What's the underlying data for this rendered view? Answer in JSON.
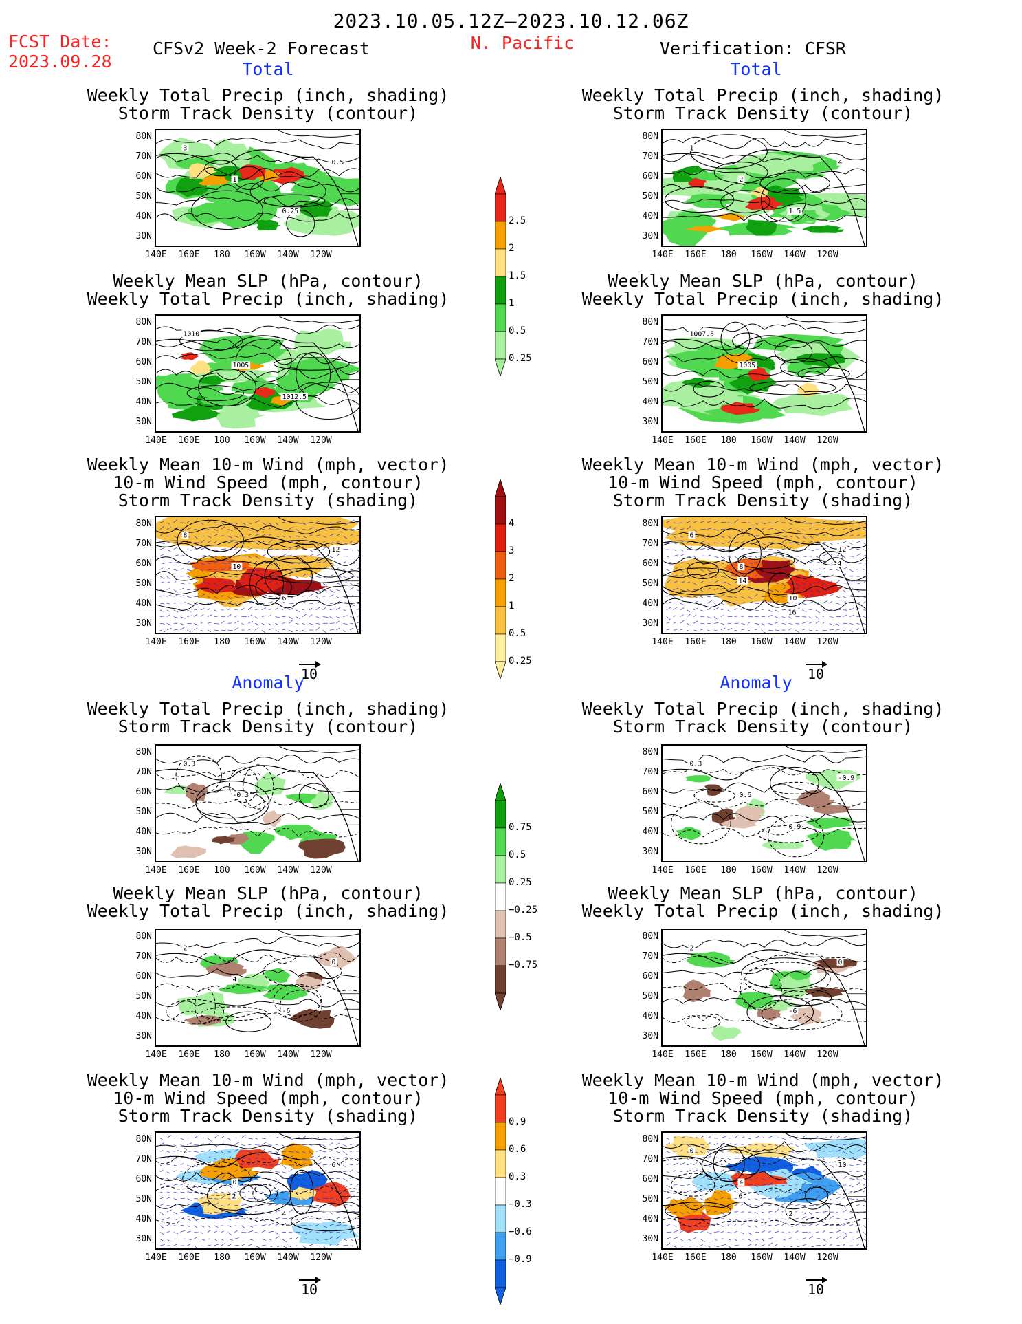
{
  "header": {
    "period": "2023.10.05.12Z–2023.10.12.06Z",
    "fcst_label": "FCST Date:",
    "fcst_date": "2023.09.28",
    "region": "N. Pacific",
    "left_title": "CFSv2 Week-2 Forecast",
    "right_title": "Verification: CFSR"
  },
  "sections": {
    "total": "Total",
    "anomaly": "Anomaly"
  },
  "panel_titles": {
    "precip_storm": "Weekly Total Precip (inch, shading)\nStorm Track Density (contour)",
    "slp_precip": "Weekly Mean SLP (hPa, contour)\nWeekly Total Precip (inch, shading)",
    "wind_storm": "Weekly Mean 10-m Wind (mph, vector)\n10-m Wind Speed (mph, contour)\nStorm Track Density (shading)"
  },
  "axes": {
    "lat_labels": [
      "80N",
      "70N",
      "60N",
      "50N",
      "40N",
      "30N"
    ],
    "lon_labels": [
      "140E",
      "160E",
      "180",
      "160W",
      "140W",
      "120W"
    ]
  },
  "wind_reference": "10",
  "colorbars": {
    "total_precip": {
      "levels": [
        "2.5",
        "2",
        "1.5",
        "1",
        "0.5",
        "0.25"
      ],
      "colors": [
        "#e8281a",
        "#f5a000",
        "#ffe080",
        "#10a010",
        "#50d850",
        "#a8f0a0"
      ]
    },
    "total_storm": {
      "levels": [
        "4",
        "3",
        "2",
        "1",
        "0.5",
        "0.25"
      ],
      "colors": [
        "#a01010",
        "#e02010",
        "#f06010",
        "#f5a000",
        "#f8c040",
        "#fff0a0"
      ]
    },
    "anom_precip": {
      "levels": [
        "0.75",
        "0.5",
        "0.25",
        "−0.25",
        "−0.5",
        "−0.75"
      ],
      "colors": [
        "#10a010",
        "#50d850",
        "#a8f0a0",
        "#ffffff",
        "#e0c0b0",
        "#b08070",
        "#704030"
      ]
    },
    "anom_storm": {
      "levels": [
        "0.9",
        "0.6",
        "0.3",
        "−0.3",
        "−0.6",
        "−0.9"
      ],
      "colors": [
        "#f04020",
        "#f5a000",
        "#ffe080",
        "#ffffff",
        "#a0e0f8",
        "#40a0f0",
        "#1060e0"
      ]
    }
  },
  "panel_labels": {
    "l_precip_total": [
      "3",
      "1",
      "0.25",
      "0.5"
    ],
    "r_precip_total": [
      "1",
      "2",
      "1.5",
      "4"
    ],
    "l_slp_total": [
      "1010",
      "1005",
      "1012.5"
    ],
    "r_slp_total": [
      "1007.5",
      "1005"
    ],
    "l_wind_total": [
      "8",
      "10",
      "6",
      "12"
    ],
    "r_wind_total": [
      "6",
      "8",
      "10",
      "12",
      "14",
      "16",
      "4"
    ],
    "l_precip_anom": [
      "0.3",
      "-0.3"
    ],
    "r_precip_anom": [
      "0.3",
      "0.6",
      "0.9",
      "-0.9"
    ],
    "l_slp_anom": [
      "2",
      "4",
      "-6",
      "0"
    ],
    "r_slp_anom": [
      "2",
      "-4",
      "-6",
      "0"
    ],
    "l_wind_anom": [
      "2",
      "0",
      "4",
      "6",
      "2"
    ],
    "r_wind_anom": [
      "0",
      "4",
      "2",
      "10",
      "6"
    ]
  }
}
